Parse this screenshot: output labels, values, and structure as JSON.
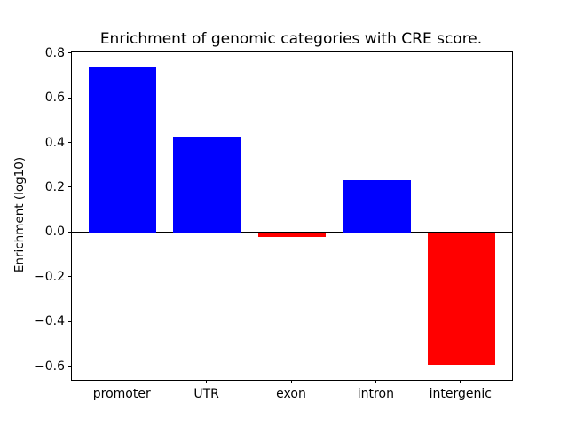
{
  "chart_data": {
    "type": "bar",
    "title": "Enrichment of genomic categories with CRE score.",
    "ylabel": "Enrichment (log10)",
    "xlabel": "",
    "categories": [
      "promoter",
      "UTR",
      "exon",
      "intron",
      "intergenic"
    ],
    "values": [
      0.74,
      0.43,
      -0.018,
      0.235,
      -0.59
    ],
    "bar_colors": [
      "#0000ff",
      "#0000ff",
      "#ff0000",
      "#0000ff",
      "#ff0000"
    ],
    "positive_color": "#0000ff",
    "negative_color": "#ff0000",
    "yticks": [
      -0.6,
      -0.4,
      -0.2,
      0.0,
      0.2,
      0.4,
      0.6,
      0.8
    ],
    "ylim": [
      -0.6565,
      0.8065
    ],
    "baseline": 0,
    "grid": false,
    "legend": null
  }
}
